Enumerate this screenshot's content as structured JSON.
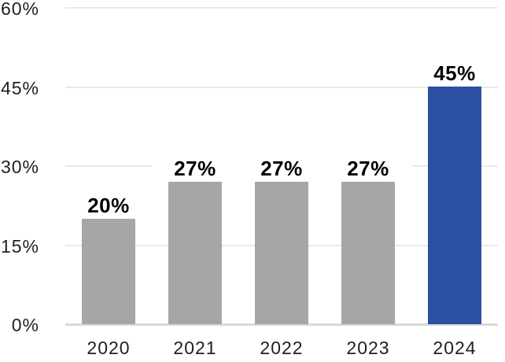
{
  "chart_data": {
    "type": "bar",
    "title": "",
    "xlabel": "",
    "ylabel": "",
    "categories": [
      "2020",
      "2021",
      "2022",
      "2023",
      "2024"
    ],
    "values": [
      20,
      27,
      27,
      27,
      45
    ],
    "bar_labels": [
      "20%",
      "27%",
      "27%",
      "27%",
      "45%"
    ],
    "y_ticks": [
      "0%",
      "15%",
      "30%",
      "45%",
      "60%"
    ],
    "y_tick_values": [
      0,
      15,
      30,
      45,
      60
    ],
    "ylim": [
      0,
      60
    ],
    "grid": "horizontal-only",
    "legend": "none",
    "highlight_category": "2024",
    "colors": {
      "bar_default": "#A6A6A6",
      "bar_highlight": "#2B4FA1",
      "gridline": "#E9E9E9",
      "axis_line": "#D9D9D9",
      "tick_label": "#1F1F1F",
      "data_label": "#000000",
      "background": "#FFFFFF"
    }
  }
}
